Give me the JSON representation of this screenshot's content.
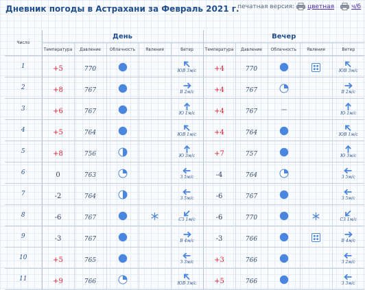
{
  "title": "Дневник погоды в Астрахани за Февраль 2021 г.",
  "print": {
    "label": "печатная версия:",
    "color_link": "цветная",
    "bw_link": "ч/б"
  },
  "headers": {
    "num": "Число",
    "day": "День",
    "evening": "Вечер",
    "temp": "Температура",
    "pressure": "Давление",
    "clouds": "Облачность",
    "phenomena": "Явления",
    "wind": "Ветер"
  },
  "colors": {
    "positive": "#e0212a",
    "icon": "#4a86e0",
    "text": "#1f4e8c"
  },
  "rows": [
    {
      "day": "1",
      "d": {
        "t": "+5",
        "p": "770",
        "c": "overcast",
        "ph": "",
        "wd": "se",
        "ws": "ЮВ 3м/с"
      },
      "e": {
        "t": "+4",
        "p": "770",
        "c": "overcast",
        "ph": "hail",
        "wd": "se",
        "ws": "ЮВ 3м/с"
      }
    },
    {
      "day": "2",
      "d": {
        "t": "+8",
        "p": "767",
        "c": "overcast",
        "ph": "",
        "wd": "w",
        "ws": "В 2м/с"
      },
      "e": {
        "t": "+4",
        "p": "767",
        "c": "partly",
        "ph": "",
        "wd": "w",
        "ws": "В 2м/с"
      }
    },
    {
      "day": "3",
      "d": {
        "t": "+6",
        "p": "767",
        "c": "overcast",
        "ph": "",
        "wd": "s",
        "ws": "Ю 1м/с"
      },
      "e": {
        "t": "+4",
        "p": "767",
        "c": "clear",
        "ph": "",
        "wd": "s",
        "ws": "Ю 1м/с"
      }
    },
    {
      "day": "4",
      "d": {
        "t": "+5",
        "p": "764",
        "c": "overcast",
        "ph": "",
        "wd": "se",
        "ws": "ЮВ 1м/с"
      },
      "e": {
        "t": "+4",
        "p": "764",
        "c": "overcast",
        "ph": "",
        "wd": "se",
        "ws": "ЮВ 1м/с"
      }
    },
    {
      "day": "5",
      "d": {
        "t": "+8",
        "p": "756",
        "c": "half",
        "ph": "",
        "wd": "s",
        "ws": "Ю 3м/с"
      },
      "e": {
        "t": "+7",
        "p": "757",
        "c": "overcast",
        "ph": "",
        "wd": "s",
        "ws": "Ю 3м/с"
      }
    },
    {
      "day": "6",
      "d": {
        "t": "0",
        "p": "763",
        "c": "partly",
        "ph": "",
        "wd": "e",
        "ws": "З 5м/с"
      },
      "e": {
        "t": "-4",
        "p": "764",
        "c": "partly",
        "ph": "",
        "wd": "e",
        "ws": "З 5м/с"
      }
    },
    {
      "day": "7",
      "d": {
        "t": "-2",
        "p": "764",
        "c": "half",
        "ph": "",
        "wd": "e",
        "ws": "З 5м/с"
      },
      "e": {
        "t": "-6",
        "p": "767",
        "c": "overcast",
        "ph": "",
        "wd": "e",
        "ws": "З 5м/с"
      }
    },
    {
      "day": "8",
      "d": {
        "t": "-6",
        "p": "767",
        "c": "overcast",
        "ph": "snow",
        "wd": "ne",
        "ws": "СЗ 1м/с"
      },
      "e": {
        "t": "-6",
        "p": "770",
        "c": "overcast",
        "ph": "snow",
        "wd": "ne",
        "ws": "СЗ 1м/с"
      }
    },
    {
      "day": "9",
      "d": {
        "t": "-3",
        "p": "767",
        "c": "overcast",
        "ph": "",
        "wd": "w",
        "ws": "В 4м/с"
      },
      "e": {
        "t": "-3",
        "p": "766",
        "c": "overcast",
        "ph": "hail",
        "wd": "w",
        "ws": "В 4м/с"
      }
    },
    {
      "day": "10",
      "d": {
        "t": "+5",
        "p": "765",
        "c": "overcast",
        "ph": "",
        "wd": "e",
        "ws": "З 3м/с"
      },
      "e": {
        "t": "+3",
        "p": "766",
        "c": "overcast",
        "ph": "",
        "wd": "e",
        "ws": "З 2м/с"
      }
    },
    {
      "day": "11",
      "d": {
        "t": "+9",
        "p": "766",
        "c": "partly",
        "ph": "",
        "wd": "se",
        "ws": "ЮВ 3м/с"
      },
      "e": {
        "t": "+5",
        "p": "766",
        "c": "overcast",
        "ph": "",
        "wd": "e",
        "ws": "З 3м/с"
      }
    }
  ]
}
